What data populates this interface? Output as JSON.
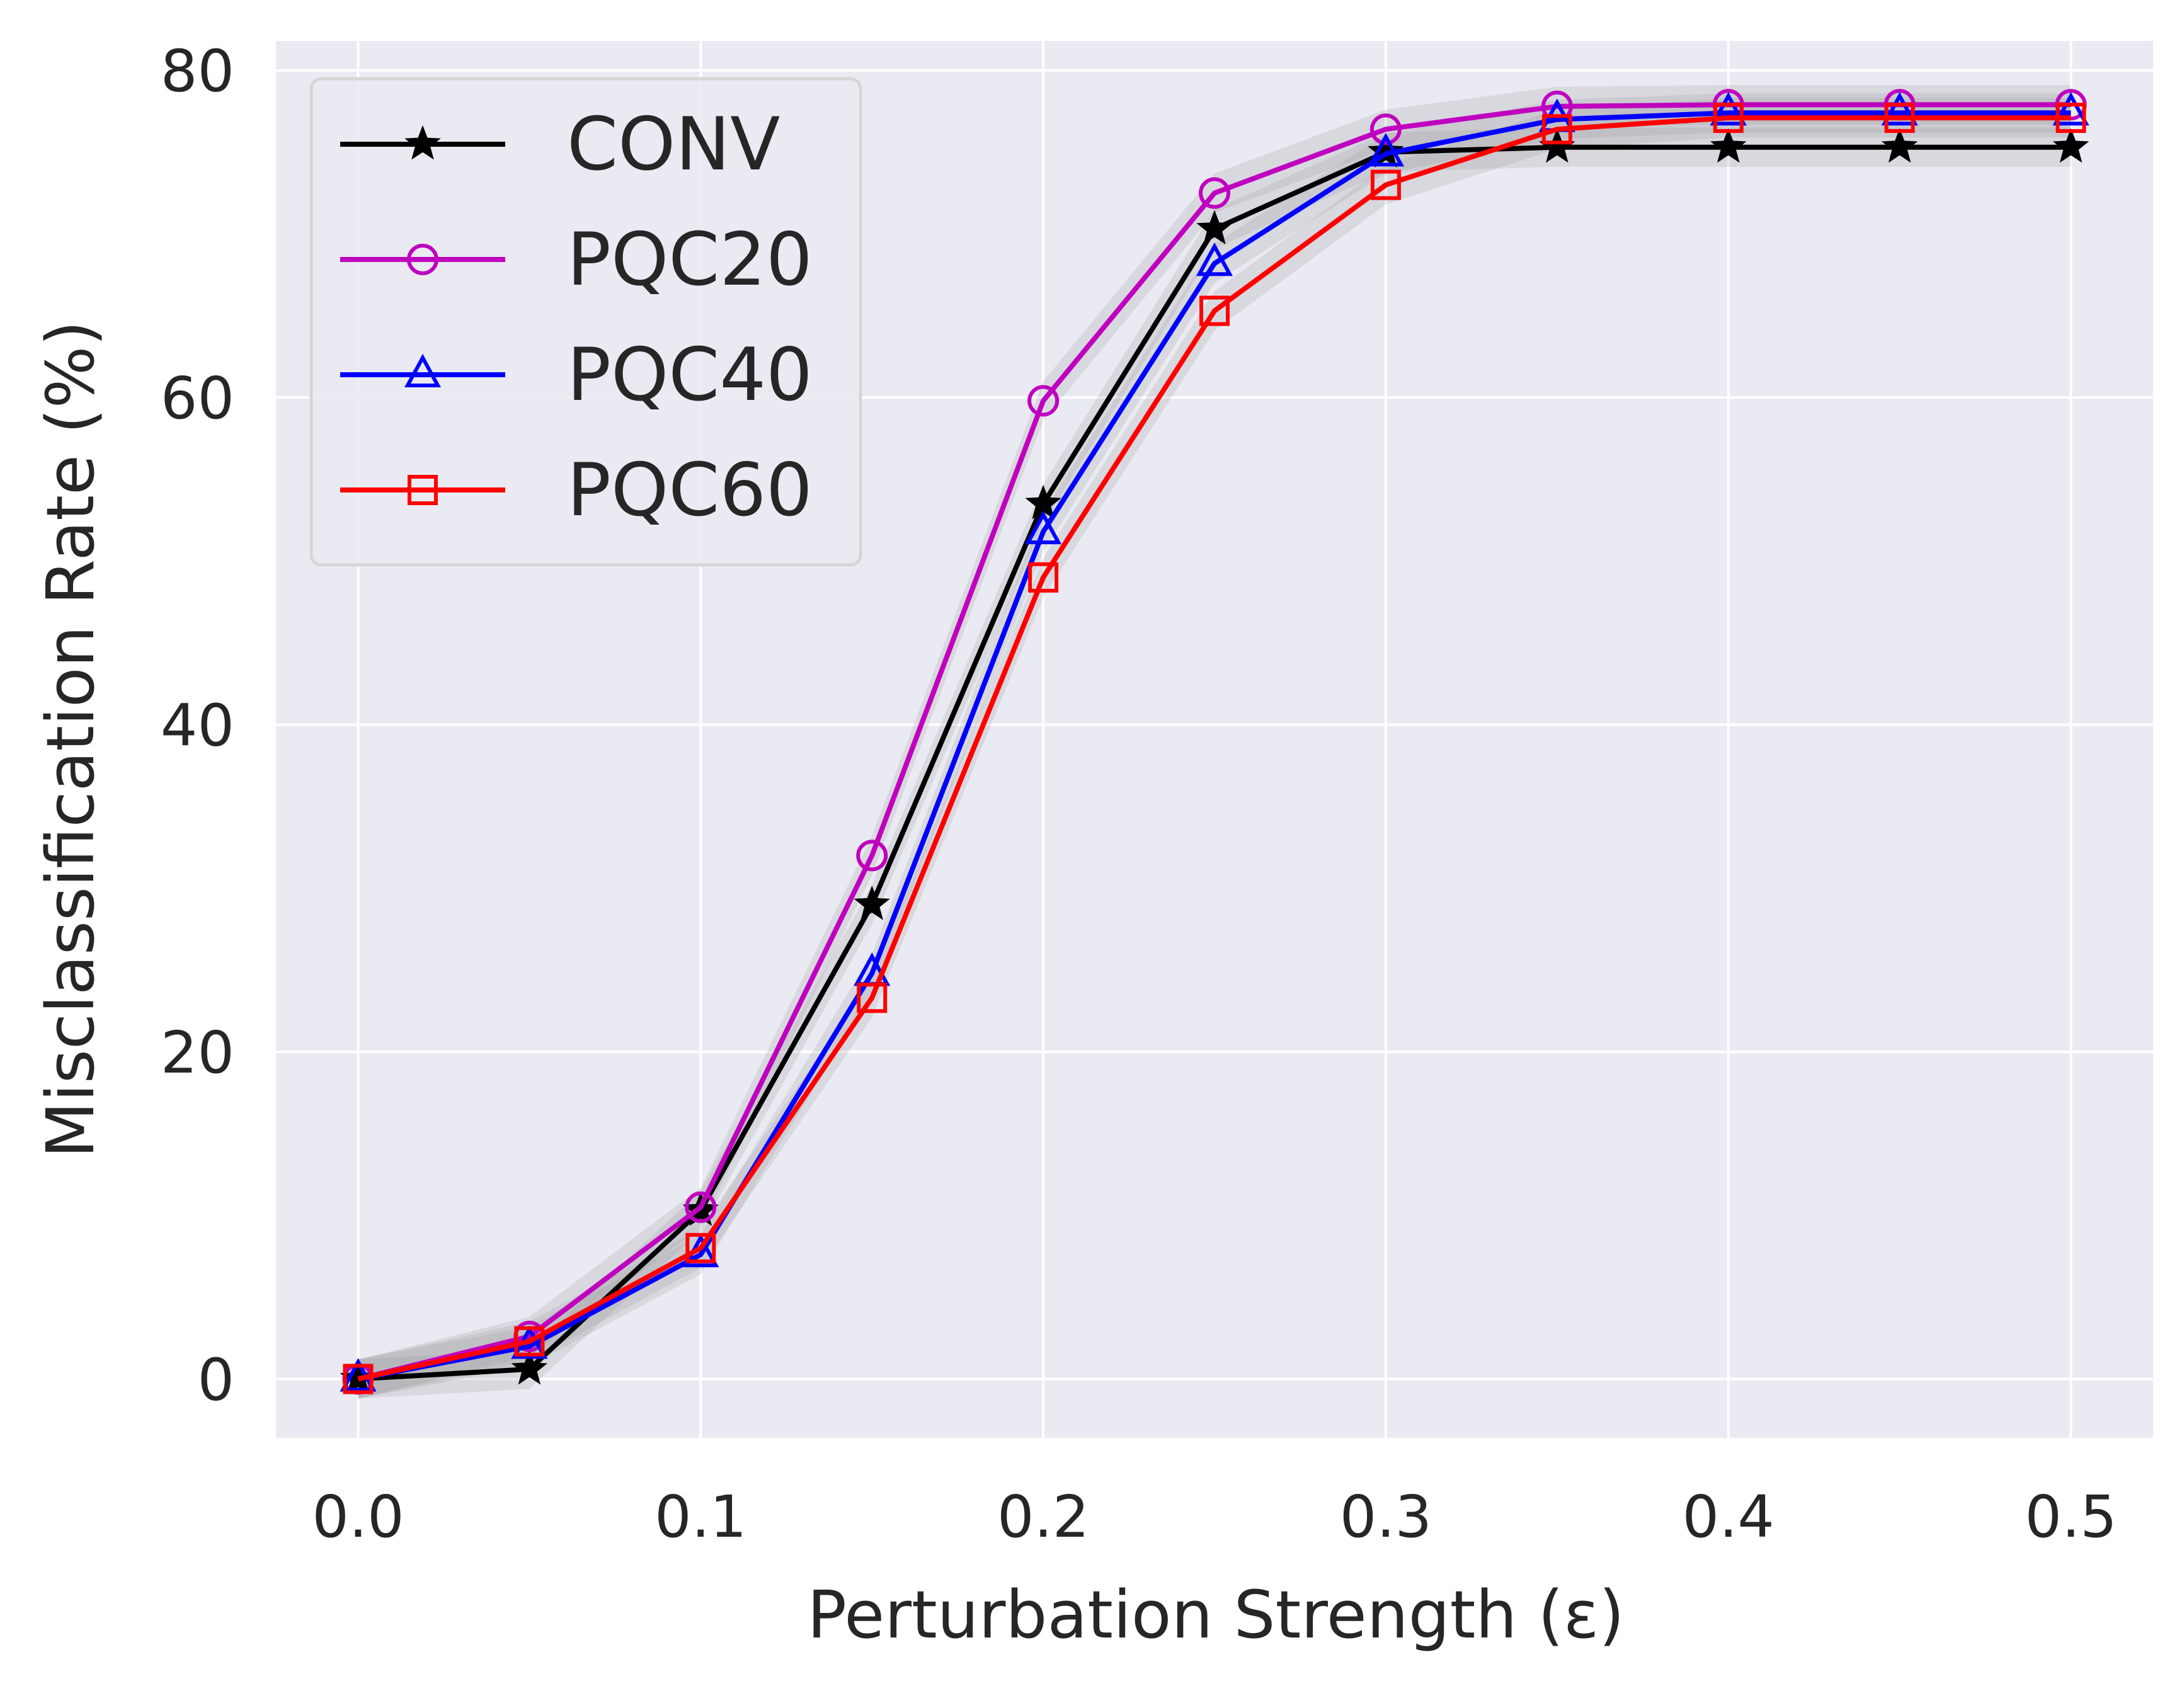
{
  "chart_data": {
    "type": "line",
    "title": "",
    "xlabel": "Perturbation Strength (ε)",
    "ylabel": "Misclassification Rate (%)",
    "xlim": [
      -0.024,
      0.524
    ],
    "ylim": [
      -3.6,
      81.8
    ],
    "xticks": [
      0.0,
      0.1,
      0.2,
      0.3,
      0.4,
      0.5
    ],
    "xtick_labels": [
      "0.0",
      "0.1",
      "0.2",
      "0.3",
      "0.4",
      "0.5"
    ],
    "yticks": [
      0,
      20,
      40,
      60,
      80
    ],
    "ytick_labels": [
      "0",
      "20",
      "40",
      "60",
      "80"
    ],
    "grid": true,
    "legend_position": "upper-left",
    "background": "#eaeaf2",
    "x": [
      0.0,
      0.05,
      0.1,
      0.15,
      0.2,
      0.25,
      0.3,
      0.35,
      0.4,
      0.45,
      0.5
    ],
    "series": [
      {
        "name": "CONV",
        "color": "#000000",
        "marker": "star",
        "values": [
          0.0,
          0.6,
          10.3,
          29.0,
          53.5,
          70.3,
          75.0,
          75.3,
          75.3,
          75.3,
          75.3
        ]
      },
      {
        "name": "PQC20",
        "color": "#bf00bf",
        "marker": "circle",
        "values": [
          0.0,
          2.6,
          10.5,
          32.0,
          59.8,
          72.5,
          76.4,
          77.8,
          77.9,
          77.9,
          77.9
        ]
      },
      {
        "name": "PQC40",
        "color": "#0000ff",
        "marker": "triangle",
        "values": [
          0.0,
          2.0,
          7.6,
          24.8,
          51.8,
          68.2,
          74.9,
          77.0,
          77.4,
          77.4,
          77.4
        ]
      },
      {
        "name": "PQC60",
        "color": "#ff0000",
        "marker": "square",
        "values": [
          0.0,
          2.3,
          8.0,
          23.3,
          49.0,
          65.3,
          73.0,
          76.4,
          77.1,
          77.1,
          77.1
        ]
      }
    ]
  }
}
